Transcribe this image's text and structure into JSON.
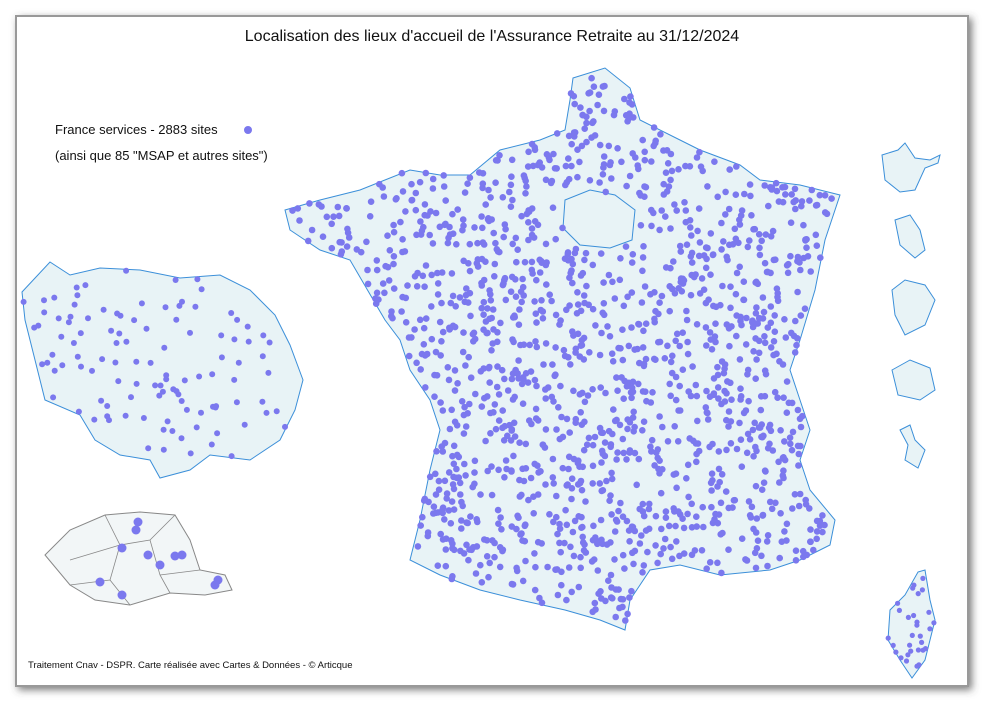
{
  "header": {
    "title": "Localisation des lieux d'accueil de l'Assurance Retraite au 31/12/2024"
  },
  "legend": {
    "entry": "France services - 2883 sites",
    "note": "(ainsi que 85 \"MSAP et autres sites\")"
  },
  "footer": {
    "source": "Traitement Cnav - DSPR. Carte réalisée avec Cartes & Données - © Articque"
  }
}
